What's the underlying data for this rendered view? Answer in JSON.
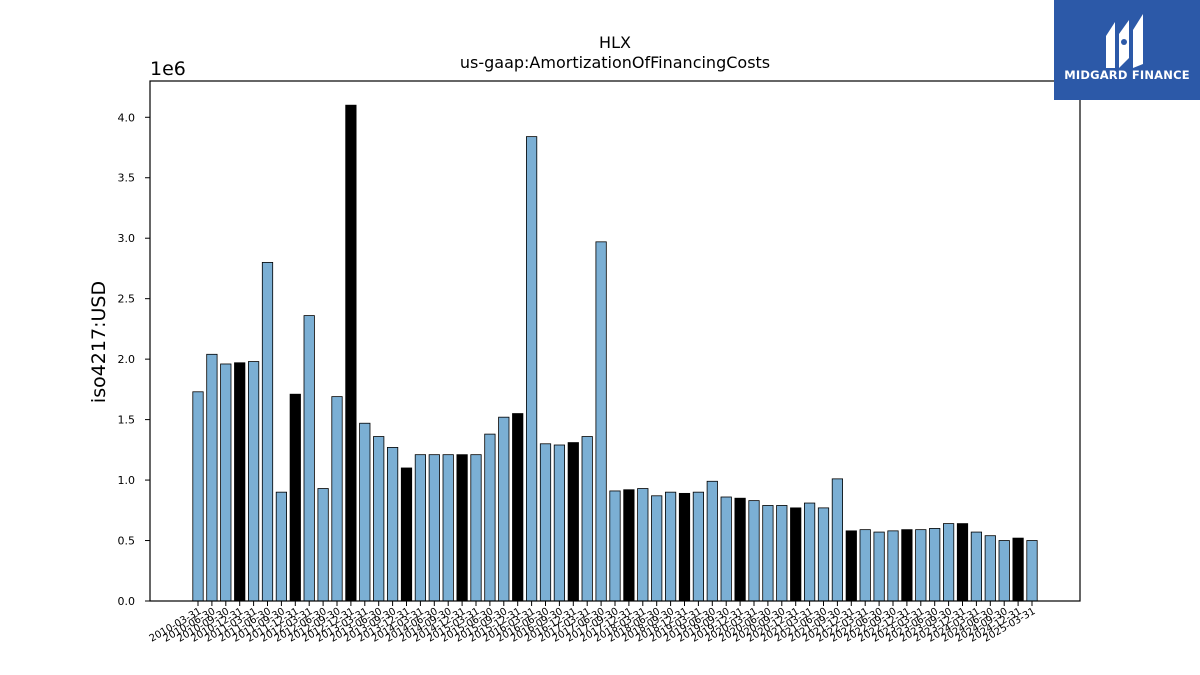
{
  "brand": {
    "name": "MIDGARD FINANCE",
    "color": "#2c59a8"
  },
  "chart_data": {
    "type": "bar",
    "title": "HLX",
    "subtitle": "us-gaap:AmortizationOfFinancingCosts",
    "ylabel": "iso4217:USD",
    "xlabel": "",
    "y_scale_label": "1e6",
    "y_multiplier": 1000000,
    "ylim": [
      0,
      4300000
    ],
    "yticks": [
      0,
      500000,
      1000000,
      1500000,
      2000000,
      2500000,
      3000000,
      3500000,
      4000000
    ],
    "ytick_labels": [
      "0.0",
      "0.5",
      "1.0",
      "1.5",
      "2.0",
      "2.5",
      "3.0",
      "3.5",
      "4.0"
    ],
    "colors": {
      "quarter": "#7bafd4",
      "year_end": "#000000",
      "edge": "#000000"
    },
    "grid": false,
    "legend": "none",
    "bars": [
      {
        "date": "2010-03-31",
        "value": 1730000,
        "kind": "quarter"
      },
      {
        "date": "2010-06-30",
        "value": 2040000,
        "kind": "quarter"
      },
      {
        "date": "2010-09-30",
        "value": 1960000,
        "kind": "quarter"
      },
      {
        "date": "2010-12-31",
        "value": 1970000,
        "kind": "year_end"
      },
      {
        "date": "2011-03-31",
        "value": 1980000,
        "kind": "quarter"
      },
      {
        "date": "2011-06-30",
        "value": 2800000,
        "kind": "quarter"
      },
      {
        "date": "2011-09-30",
        "value": 900000,
        "kind": "quarter"
      },
      {
        "date": "2011-12-31",
        "value": 1710000,
        "kind": "year_end"
      },
      {
        "date": "2012-03-31",
        "value": 2360000,
        "kind": "quarter"
      },
      {
        "date": "2012-06-30",
        "value": 930000,
        "kind": "quarter"
      },
      {
        "date": "2012-09-30",
        "value": 1690000,
        "kind": "quarter"
      },
      {
        "date": "2012-12-31",
        "value": 4100000,
        "kind": "year_end"
      },
      {
        "date": "2013-03-31",
        "value": 1470000,
        "kind": "quarter"
      },
      {
        "date": "2013-06-30",
        "value": 1360000,
        "kind": "quarter"
      },
      {
        "date": "2013-09-30",
        "value": 1270000,
        "kind": "quarter"
      },
      {
        "date": "2013-12-31",
        "value": 1100000,
        "kind": "year_end"
      },
      {
        "date": "2014-03-31",
        "value": 1210000,
        "kind": "quarter"
      },
      {
        "date": "2014-06-30",
        "value": 1210000,
        "kind": "quarter"
      },
      {
        "date": "2014-09-30",
        "value": 1210000,
        "kind": "quarter"
      },
      {
        "date": "2014-12-31",
        "value": 1210000,
        "kind": "year_end"
      },
      {
        "date": "2015-03-31",
        "value": 1210000,
        "kind": "quarter"
      },
      {
        "date": "2015-06-30",
        "value": 1380000,
        "kind": "quarter"
      },
      {
        "date": "2015-09-30",
        "value": 1520000,
        "kind": "quarter"
      },
      {
        "date": "2015-12-31",
        "value": 1550000,
        "kind": "year_end"
      },
      {
        "date": "2016-03-31",
        "value": 3840000,
        "kind": "quarter"
      },
      {
        "date": "2016-06-30",
        "value": 1300000,
        "kind": "quarter"
      },
      {
        "date": "2016-09-30",
        "value": 1290000,
        "kind": "quarter"
      },
      {
        "date": "2016-12-31",
        "value": 1310000,
        "kind": "year_end"
      },
      {
        "date": "2017-03-31",
        "value": 1360000,
        "kind": "quarter"
      },
      {
        "date": "2017-06-30",
        "value": 2970000,
        "kind": "quarter"
      },
      {
        "date": "2017-09-30",
        "value": 910000,
        "kind": "quarter"
      },
      {
        "date": "2017-12-31",
        "value": 920000,
        "kind": "year_end"
      },
      {
        "date": "2018-03-31",
        "value": 930000,
        "kind": "quarter"
      },
      {
        "date": "2018-06-30",
        "value": 870000,
        "kind": "quarter"
      },
      {
        "date": "2018-09-30",
        "value": 900000,
        "kind": "quarter"
      },
      {
        "date": "2018-12-31",
        "value": 890000,
        "kind": "year_end"
      },
      {
        "date": "2019-03-31",
        "value": 900000,
        "kind": "quarter"
      },
      {
        "date": "2019-06-30",
        "value": 990000,
        "kind": "quarter"
      },
      {
        "date": "2019-09-30",
        "value": 860000,
        "kind": "quarter"
      },
      {
        "date": "2019-12-31",
        "value": 850000,
        "kind": "year_end"
      },
      {
        "date": "2020-03-31",
        "value": 830000,
        "kind": "quarter"
      },
      {
        "date": "2020-06-30",
        "value": 790000,
        "kind": "quarter"
      },
      {
        "date": "2020-09-30",
        "value": 790000,
        "kind": "quarter"
      },
      {
        "date": "2020-12-31",
        "value": 770000,
        "kind": "year_end"
      },
      {
        "date": "2021-03-31",
        "value": 810000,
        "kind": "quarter"
      },
      {
        "date": "2021-06-30",
        "value": 770000,
        "kind": "quarter"
      },
      {
        "date": "2021-09-30",
        "value": 1010000,
        "kind": "quarter"
      },
      {
        "date": "2021-12-31",
        "value": 580000,
        "kind": "year_end"
      },
      {
        "date": "2022-03-31",
        "value": 590000,
        "kind": "quarter"
      },
      {
        "date": "2022-06-30",
        "value": 570000,
        "kind": "quarter"
      },
      {
        "date": "2022-09-30",
        "value": 580000,
        "kind": "quarter"
      },
      {
        "date": "2022-12-31",
        "value": 590000,
        "kind": "year_end"
      },
      {
        "date": "2023-03-31",
        "value": 590000,
        "kind": "quarter"
      },
      {
        "date": "2023-06-30",
        "value": 600000,
        "kind": "quarter"
      },
      {
        "date": "2023-09-30",
        "value": 640000,
        "kind": "quarter"
      },
      {
        "date": "2023-12-31",
        "value": 640000,
        "kind": "year_end"
      },
      {
        "date": "2024-03-31",
        "value": 570000,
        "kind": "quarter"
      },
      {
        "date": "2024-06-30",
        "value": 540000,
        "kind": "quarter"
      },
      {
        "date": "2024-09-30",
        "value": 500000,
        "kind": "quarter"
      },
      {
        "date": "2024-12-31",
        "value": 520000,
        "kind": "year_end"
      },
      {
        "date": "2025-03-31",
        "value": 500000,
        "kind": "quarter"
      }
    ]
  }
}
